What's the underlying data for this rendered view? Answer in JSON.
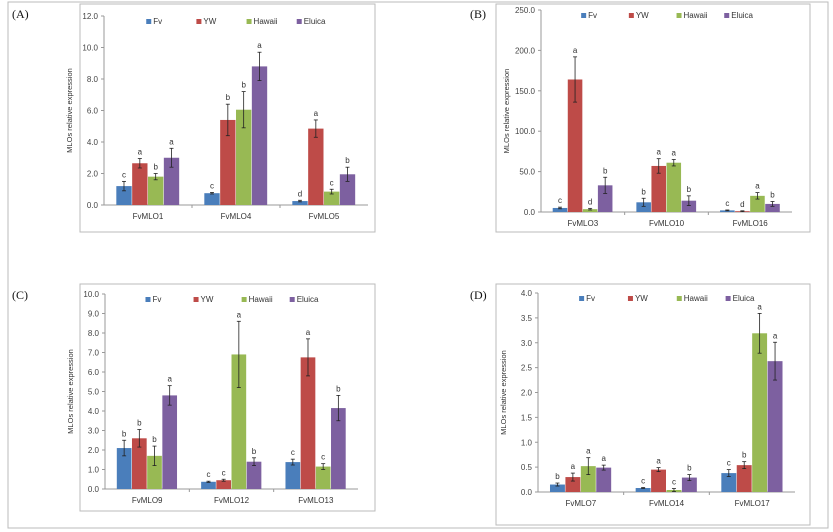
{
  "chart_data": [
    {
      "type": "bar",
      "panel_label": "(A)",
      "ylabel": "MLOs relative expression",
      "ylim": [
        0,
        12
      ],
      "yticks": [
        "0.0",
        "2.0",
        "4.0",
        "6.0",
        "8.0",
        "10.0",
        "12.0"
      ],
      "categories": [
        "FvMLO1",
        "FvMLO4",
        "FvMLO5"
      ],
      "legend_position": "top",
      "series": [
        {
          "name": "Fv",
          "color": "#4a7ebb",
          "values": [
            1.2,
            0.75,
            0.25
          ],
          "errors": [
            0.3,
            0.05,
            0.05
          ],
          "letters": [
            "c",
            "c",
            "d"
          ]
        },
        {
          "name": "YW",
          "color": "#be4b48",
          "values": [
            2.65,
            5.4,
            4.85
          ],
          "errors": [
            0.3,
            1.0,
            0.55
          ],
          "letters": [
            "a",
            "b",
            "a"
          ]
        },
        {
          "name": "Hawaii",
          "color": "#98b954",
          "values": [
            1.8,
            6.05,
            0.85
          ],
          "errors": [
            0.2,
            1.15,
            0.15
          ],
          "letters": [
            "b",
            "b",
            "c"
          ]
        },
        {
          "name": "Eluica",
          "color": "#7d60a0",
          "values": [
            3.0,
            8.8,
            1.95
          ],
          "errors": [
            0.6,
            0.9,
            0.45
          ],
          "letters": [
            "a",
            "a",
            "b"
          ]
        }
      ]
    },
    {
      "type": "bar",
      "panel_label": "(B)",
      "ylabel": "MLOs relative expression",
      "ylim": [
        0,
        250
      ],
      "yticks": [
        "0.0",
        "50.0",
        "100.0",
        "150.0",
        "200.0",
        "250.0"
      ],
      "categories": [
        "FvMLO3",
        "FvMLO10",
        "FvMLO16"
      ],
      "legend_position": "top",
      "series": [
        {
          "name": "Fv",
          "color": "#4a7ebb",
          "values": [
            5,
            12,
            2
          ],
          "errors": [
            1,
            5,
            0.5
          ],
          "letters": [
            "c",
            "b",
            "c"
          ]
        },
        {
          "name": "YW",
          "color": "#be4b48",
          "values": [
            164,
            57,
            1
          ],
          "errors": [
            28,
            9,
            0.5
          ],
          "letters": [
            "a",
            "a",
            "d"
          ]
        },
        {
          "name": "Hawaii",
          "color": "#98b954",
          "values": [
            3.5,
            61,
            20
          ],
          "errors": [
            1,
            4,
            4
          ],
          "letters": [
            "d",
            "a",
            "a"
          ]
        },
        {
          "name": "Eluica",
          "color": "#7d60a0",
          "values": [
            33,
            14,
            10
          ],
          "errors": [
            10,
            6,
            3
          ],
          "letters": [
            "b",
            "b",
            "b"
          ]
        }
      ]
    },
    {
      "type": "bar",
      "panel_label": "(C)",
      "ylabel": "MLOs relative expression",
      "ylim": [
        0,
        10
      ],
      "yticks": [
        "0.0",
        "1.0",
        "2.0",
        "3.0",
        "4.0",
        "5.0",
        "6.0",
        "7.0",
        "8.0",
        "9.0",
        "10.0"
      ],
      "categories": [
        "FvMLO9",
        "FvMLO12",
        "FvMLO13"
      ],
      "legend_position": "top",
      "series": [
        {
          "name": "Fv",
          "color": "#4a7ebb",
          "values": [
            2.1,
            0.37,
            1.38
          ],
          "errors": [
            0.4,
            0.03,
            0.15
          ],
          "letters": [
            "b",
            "c",
            "c"
          ]
        },
        {
          "name": "YW",
          "color": "#be4b48",
          "values": [
            2.6,
            0.45,
            6.75
          ],
          "errors": [
            0.45,
            0.05,
            0.95
          ],
          "letters": [
            "b",
            "c",
            "a"
          ]
        },
        {
          "name": "Hawaii",
          "color": "#98b954",
          "values": [
            1.7,
            6.9,
            1.15
          ],
          "errors": [
            0.5,
            1.7,
            0.15
          ],
          "letters": [
            "b",
            "a",
            "c"
          ]
        },
        {
          "name": "Eluica",
          "color": "#7d60a0",
          "values": [
            4.8,
            1.4,
            4.15
          ],
          "errors": [
            0.5,
            0.2,
            0.65
          ],
          "letters": [
            "a",
            "b",
            "b"
          ]
        }
      ]
    },
    {
      "type": "bar",
      "panel_label": "(D)",
      "ylabel": "MLOs relative expression",
      "ylim": [
        0,
        4
      ],
      "yticks": [
        "0.0",
        "0.5",
        "1.0",
        "1.5",
        "2.0",
        "2.5",
        "3.0",
        "3.5",
        "4.0"
      ],
      "categories": [
        "FvMLO7",
        "FvMLO14",
        "FvMLO17"
      ],
      "legend_position": "top",
      "series": [
        {
          "name": "Fv",
          "color": "#4a7ebb",
          "values": [
            0.15,
            0.08,
            0.38
          ],
          "errors": [
            0.03,
            0.01,
            0.07
          ],
          "letters": [
            "b",
            "c",
            "c"
          ]
        },
        {
          "name": "YW",
          "color": "#be4b48",
          "values": [
            0.3,
            0.45,
            0.54
          ],
          "errors": [
            0.08,
            0.04,
            0.07
          ],
          "letters": [
            "a",
            "a",
            "b"
          ]
        },
        {
          "name": "Hawaii",
          "color": "#98b954",
          "values": [
            0.52,
            0.04,
            3.19
          ],
          "errors": [
            0.17,
            0.03,
            0.4
          ],
          "letters": [
            "a",
            "c",
            "a"
          ]
        },
        {
          "name": "Eluica",
          "color": "#7d60a0",
          "values": [
            0.49,
            0.29,
            2.63
          ],
          "errors": [
            0.05,
            0.06,
            0.38
          ],
          "letters": [
            "a",
            "b",
            "a"
          ]
        }
      ]
    }
  ]
}
